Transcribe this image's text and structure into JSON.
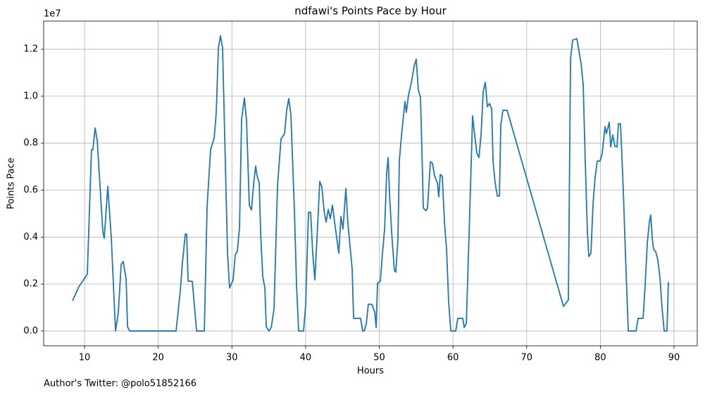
{
  "chart_data": {
    "type": "line",
    "title": "ndfawi's Points Pace by Hour",
    "x_label": "Hours",
    "y_label": "Points Pace",
    "y_offset_label": "1e7",
    "footnote": "Author's Twitter: @polo51852166",
    "color": "#1f77b4",
    "grid": true,
    "xlim": [
      4.45,
      93.15
    ],
    "ylim": [
      -0.063,
      1.32
    ],
    "xticks": [
      10,
      20,
      30,
      40,
      50,
      60,
      70,
      80,
      90
    ],
    "yticks": [
      {
        "value": 0,
        "label": "0.0"
      },
      0.2,
      0.4,
      0.6,
      0.8,
      {
        "value": 1,
        "label": "1.0"
      },
      1.2
    ],
    "x": [
      8.37,
      9.23,
      10.37,
      10.94,
      11.13,
      11.43,
      11.72,
      12.48,
      12.67,
      13.15,
      13.62,
      14.2,
      14.58,
      14.97,
      15.25,
      15.64,
      15.83,
      16.12,
      22.42,
      23,
      23.28,
      23.67,
      23.86,
      24.05,
      24.62,
      24.91,
      25.2,
      26.25,
      26.63,
      27.1,
      27.59,
      27.87,
      28.16,
      28.44,
      28.73,
      29.4,
      29.68,
      30.16,
      30.45,
      30.73,
      31.03,
      31.31,
      31.69,
      31.98,
      32.36,
      32.65,
      32.94,
      33.22,
      33.41,
      33.7,
      33.9,
      34.18,
      34.47,
      34.66,
      35.04,
      35.33,
      35.71,
      36.19,
      36.66,
      37.14,
      37.43,
      37.71,
      38,
      38.48,
      38.77,
      39.05,
      39.72,
      40,
      40.39,
      40.68,
      40.96,
      41.25,
      41.54,
      41.92,
      42.21,
      42.5,
      42.78,
      43.07,
      43.35,
      43.64,
      43.93,
      44.5,
      44.79,
      45.07,
      45.46,
      45.74,
      46.32,
      46.51,
      47.46,
      47.75,
      47.94,
      48.23,
      48.51,
      48.99,
      49.38,
      49.57,
      49.76,
      50.14,
      50.43,
      50.72,
      51,
      51.2,
      51.39,
      51.67,
      52.05,
      52.24,
      52.53,
      52.72,
      53,
      53.48,
      53.67,
      53.96,
      54.34,
      54.73,
      55.01,
      55.3,
      55.59,
      55.87,
      55.97,
      56.35,
      56.54,
      56.93,
      57.21,
      57.5,
      57.88,
      58.07,
      58.27,
      58.55,
      58.84,
      59.13,
      59.41,
      59.7,
      60.37,
      60.65,
      61.33,
      61.52,
      61.81,
      62.28,
      62.66,
      62.86,
      63.24,
      63.53,
      63.82,
      64.1,
      64.39,
      64.67,
      64.96,
      65.25,
      65.44,
      65.72,
      66.01,
      66.3,
      66.49,
      66.77,
      67.35,
      74.99,
      75.66,
      75.95,
      76.24,
      76.81,
      77.38,
      77.67,
      77.95,
      78.24,
      78.43,
      78.72,
      79.01,
      79.29,
      79.58,
      79.96,
      80.25,
      80.63,
      80.82,
      81.21,
      81.4,
      81.68,
      81.97,
      82.26,
      82.45,
      82.73,
      83.11,
      83.4,
      83.79,
      84.84,
      85.13,
      85.8,
      86.08,
      86.37,
      86.65,
      86.84,
      87.04,
      87.23,
      87.51,
      87.8,
      88.09,
      88.37,
      88.66,
      89.04,
      89.23
    ],
    "values": [
      0.129,
      0.189,
      0.242,
      0.772,
      0.772,
      0.865,
      0.811,
      0.422,
      0.395,
      0.616,
      0.401,
      0,
      0.078,
      0.284,
      0.296,
      0.221,
      0.018,
      0,
      0,
      0.174,
      0.29,
      0.413,
      0.413,
      0.212,
      0.212,
      0.105,
      0,
      0,
      0.53,
      0.772,
      0.823,
      0.93,
      1.206,
      1.257,
      1.206,
      0.332,
      0.183,
      0.218,
      0.326,
      0.338,
      0.443,
      0.901,
      0.993,
      0.895,
      0.536,
      0.515,
      0.625,
      0.703,
      0.661,
      0.631,
      0.413,
      0.233,
      0.183,
      0.018,
      0,
      0.015,
      0.093,
      0.622,
      0.817,
      0.841,
      0.94,
      0.99,
      0.922,
      0.512,
      0.194,
      0,
      0,
      0.108,
      0.506,
      0.506,
      0.332,
      0.218,
      0.392,
      0.637,
      0.613,
      0.512,
      0.464,
      0.518,
      0.479,
      0.536,
      0.464,
      0.332,
      0.488,
      0.434,
      0.607,
      0.458,
      0.263,
      0.054,
      0.054,
      0,
      0,
      0.03,
      0.114,
      0.114,
      0.081,
      0.015,
      0.203,
      0.212,
      0.332,
      0.434,
      0.673,
      0.739,
      0.58,
      0.422,
      0.257,
      0.251,
      0.392,
      0.727,
      0.829,
      0.978,
      0.931,
      1.005,
      1.056,
      1.128,
      1.158,
      1.026,
      0.996,
      0.661,
      0.524,
      0.512,
      0.524,
      0.721,
      0.715,
      0.661,
      0.631,
      0.572,
      0.667,
      0.658,
      0.464,
      0.347,
      0.123,
      0,
      0,
      0.054,
      0.054,
      0.015,
      0.033,
      0.512,
      0.916,
      0.856,
      0.757,
      0.739,
      0.841,
      1.02,
      1.059,
      0.955,
      0.969,
      0.946,
      0.721,
      0.631,
      0.575,
      0.575,
      0.877,
      0.94,
      0.94,
      0.105,
      0.132,
      1.158,
      1.239,
      1.245,
      1.14,
      1.05,
      0.721,
      0.422,
      0.317,
      0.332,
      0.542,
      0.655,
      0.724,
      0.724,
      0.757,
      0.871,
      0.841,
      0.889,
      0.784,
      0.835,
      0.787,
      0.784,
      0.883,
      0.883,
      0.601,
      0.332,
      0,
      0,
      0.054,
      0.054,
      0.197,
      0.377,
      0.464,
      0.494,
      0.395,
      0.347,
      0.338,
      0.302,
      0.227,
      0.099,
      0,
      0,
      0.209
    ]
  }
}
